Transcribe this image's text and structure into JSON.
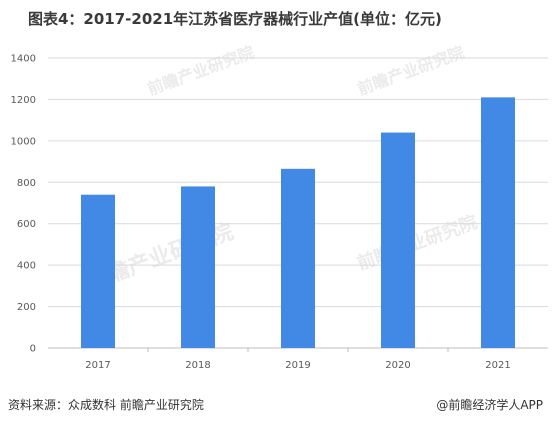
{
  "title": "图表4：2017-2021年江苏省医疗器械行业产值(单位：亿元)",
  "source": "资料来源：众成数科 前瞻产业研究院",
  "brand": "@前瞻经济学人APP",
  "colors": {
    "bar": "#4189e4",
    "grid": "#d9d9d9",
    "axis": "#bfbfbf"
  },
  "chart_data": {
    "type": "bar",
    "title": "图表4：2017-2021年江苏省医疗器械行业产值(单位：亿元)",
    "categories": [
      "2017",
      "2018",
      "2019",
      "2020",
      "2021"
    ],
    "values": [
      740,
      780,
      865,
      1040,
      1210
    ],
    "xlabel": "",
    "ylabel": "",
    "ylim": [
      0,
      1400
    ],
    "yticks": [
      0,
      200,
      400,
      600,
      800,
      1000,
      1200,
      1400
    ],
    "grid": true,
    "legend": "none"
  }
}
